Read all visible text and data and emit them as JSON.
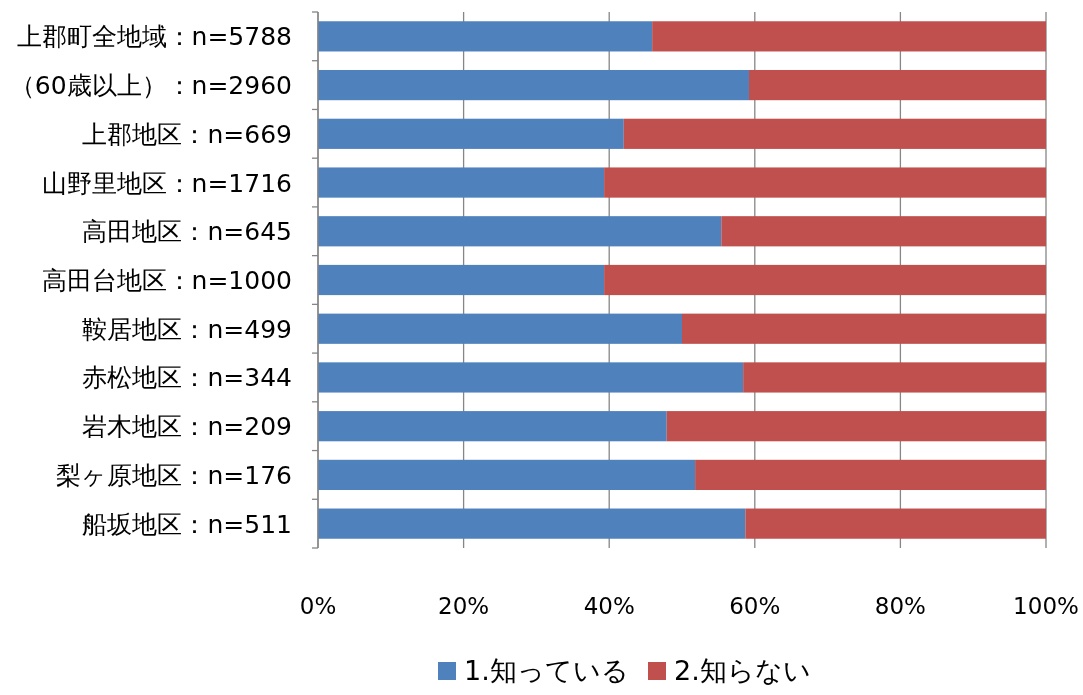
{
  "chart_data": {
    "type": "bar",
    "orientation": "horizontal",
    "stacked": true,
    "categories": [
      "上郡町全地域：n=5788",
      "（60歳以上）：n=2960",
      "上郡地区：n=669",
      "山野里地区：n=1716",
      "高田地区：n=645",
      "高田台地区：n=1000",
      "鞍居地区：n=499",
      "赤松地区：n=344",
      "岩木地区：n=209",
      "梨ヶ原地区：n=176",
      "船坂地区：n=511"
    ],
    "series": [
      {
        "name": "1.知っている",
        "color": "#4f81bd",
        "values": [
          45.9,
          59.2,
          42.0,
          39.3,
          55.4,
          39.3,
          50.0,
          58.4,
          47.9,
          51.8,
          58.7
        ]
      },
      {
        "name": "2.知らない",
        "color": "#c0504d",
        "values": [
          54.1,
          40.8,
          58.0,
          60.7,
          44.6,
          60.7,
          50.0,
          41.6,
          52.1,
          48.2,
          41.3
        ]
      }
    ],
    "xlim": [
      0,
      100
    ],
    "xticks": [
      {
        "value": 0,
        "label": "0%"
      },
      {
        "value": 20,
        "label": "20%"
      },
      {
        "value": 40,
        "label": "40%"
      },
      {
        "value": 60,
        "label": "60%"
      },
      {
        "value": 80,
        "label": "80%"
      },
      {
        "value": 100,
        "label": "100%"
      }
    ],
    "grid": "x",
    "legend": "bottom"
  }
}
